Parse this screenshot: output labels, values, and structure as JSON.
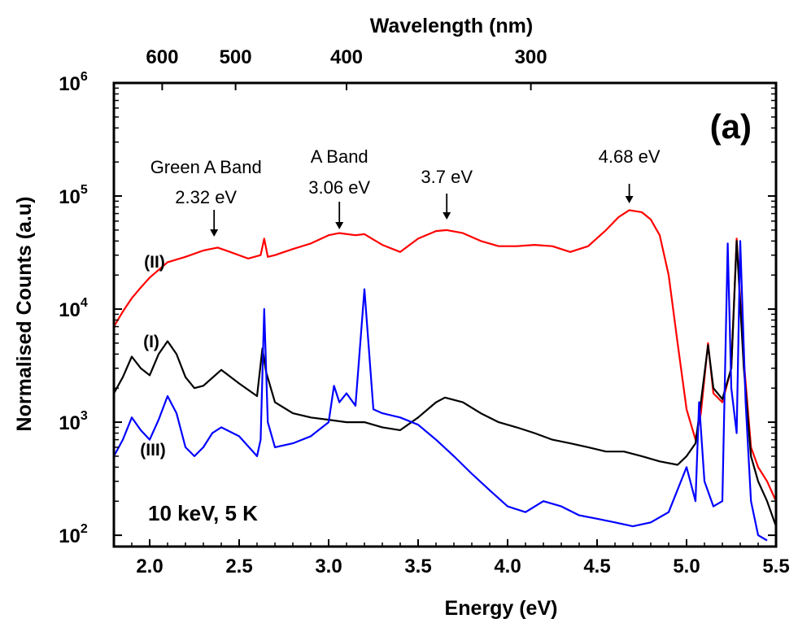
{
  "chart_data": {
    "type": "line",
    "title": "",
    "panel_label": "(a)",
    "condition_label": "10 keV, 5 K",
    "xlabel": "Energy (eV)",
    "x2label": "Wavelength (nm)",
    "ylabel": "Normalised Counts (a.u)",
    "xlim": [
      1.8,
      5.5
    ],
    "ylim_log10": [
      1.9,
      6
    ],
    "y_scale": "log",
    "x_ticks": [
      "2.0",
      "2.5",
      "3.0",
      "3.5",
      "4.0",
      "4.5",
      "5.0",
      "5.5"
    ],
    "x_tick_values": [
      2.0,
      2.5,
      3.0,
      3.5,
      4.0,
      4.5,
      5.0,
      5.5
    ],
    "y_ticks": [
      {
        "base": "10",
        "exp": "2",
        "log": 2
      },
      {
        "base": "10",
        "exp": "3",
        "log": 3
      },
      {
        "base": "10",
        "exp": "4",
        "log": 4
      },
      {
        "base": "10",
        "exp": "5",
        "log": 5
      },
      {
        "base": "10",
        "exp": "6",
        "log": 6
      }
    ],
    "top_ticks": [
      {
        "label": "600",
        "energy": 2.07
      },
      {
        "label": "500",
        "energy": 2.48
      },
      {
        "label": "400",
        "energy": 3.1
      },
      {
        "label": "300",
        "energy": 4.13
      }
    ],
    "series": [
      {
        "name": "(II)",
        "color": "#ff0000",
        "x": [
          1.8,
          1.85,
          1.9,
          1.95,
          2.0,
          2.1,
          2.2,
          2.3,
          2.38,
          2.45,
          2.55,
          2.62,
          2.64,
          2.66,
          2.7,
          2.8,
          2.9,
          3.0,
          3.06,
          3.15,
          3.2,
          3.3,
          3.4,
          3.5,
          3.6,
          3.66,
          3.75,
          3.85,
          3.95,
          4.05,
          4.15,
          4.25,
          4.35,
          4.45,
          4.55,
          4.62,
          4.68,
          4.75,
          4.8,
          4.85,
          4.9,
          4.95,
          5.0,
          5.05,
          5.08,
          5.12,
          5.15,
          5.2,
          5.25,
          5.28,
          5.32,
          5.36,
          5.4,
          5.45,
          5.5
        ],
        "y": [
          7000,
          9500,
          12500,
          15500,
          19000,
          26000,
          29000,
          33000,
          35000,
          32000,
          28000,
          30000,
          42000,
          29000,
          30000,
          34000,
          38000,
          45000,
          47000,
          45000,
          46000,
          37000,
          32000,
          42000,
          49000,
          50000,
          47000,
          40000,
          36000,
          36000,
          37000,
          36000,
          32000,
          36000,
          50000,
          65000,
          75000,
          72000,
          62000,
          45000,
          20000,
          5000,
          1300,
          700,
          1200,
          5000,
          1800,
          1500,
          3000,
          42000,
          3500,
          600,
          400,
          300,
          200
        ]
      },
      {
        "name": "(I)",
        "color": "#000000",
        "x": [
          1.8,
          1.85,
          1.9,
          1.95,
          2.0,
          2.05,
          2.1,
          2.15,
          2.2,
          2.25,
          2.3,
          2.4,
          2.5,
          2.6,
          2.63,
          2.65,
          2.7,
          2.8,
          2.9,
          3.0,
          3.1,
          3.2,
          3.3,
          3.4,
          3.5,
          3.6,
          3.65,
          3.75,
          3.85,
          3.95,
          4.05,
          4.15,
          4.25,
          4.35,
          4.45,
          4.55,
          4.65,
          4.75,
          4.85,
          4.95,
          5.0,
          5.05,
          5.08,
          5.12,
          5.15,
          5.2,
          5.25,
          5.28,
          5.32,
          5.36,
          5.4,
          5.45,
          5.5
        ],
        "y": [
          1800,
          2500,
          3800,
          3000,
          2600,
          4000,
          5200,
          4000,
          2500,
          2000,
          2100,
          2900,
          2200,
          1700,
          4500,
          2800,
          1500,
          1200,
          1100,
          1050,
          1000,
          1000,
          900,
          850,
          1100,
          1500,
          1650,
          1500,
          1200,
          1000,
          900,
          800,
          700,
          650,
          600,
          550,
          550,
          500,
          450,
          420,
          500,
          650,
          1500,
          4800,
          2000,
          1600,
          3000,
          40000,
          3000,
          500,
          300,
          200,
          120
        ]
      },
      {
        "name": "(III)",
        "color": "#0000ff",
        "x": [
          1.8,
          1.85,
          1.9,
          1.95,
          2.0,
          2.05,
          2.1,
          2.15,
          2.2,
          2.25,
          2.3,
          2.35,
          2.4,
          2.5,
          2.6,
          2.62,
          2.64,
          2.66,
          2.7,
          2.8,
          2.9,
          3.0,
          3.03,
          3.06,
          3.1,
          3.15,
          3.2,
          3.25,
          3.3,
          3.4,
          3.5,
          3.6,
          3.7,
          3.8,
          3.9,
          4.0,
          4.1,
          4.2,
          4.3,
          4.4,
          4.5,
          4.6,
          4.7,
          4.8,
          4.9,
          5.0,
          5.05,
          5.07,
          5.1,
          5.15,
          5.2,
          5.23,
          5.25,
          5.28,
          5.3,
          5.33,
          5.36,
          5.4,
          5.45
        ],
        "y": [
          500,
          700,
          1100,
          850,
          700,
          1050,
          1700,
          1200,
          600,
          500,
          600,
          800,
          900,
          750,
          500,
          700,
          10000,
          1000,
          600,
          650,
          750,
          1000,
          2100,
          1500,
          1800,
          1400,
          15000,
          1300,
          1200,
          1100,
          950,
          700,
          500,
          350,
          250,
          180,
          160,
          200,
          180,
          150,
          140,
          130,
          120,
          130,
          160,
          400,
          200,
          1500,
          300,
          180,
          200,
          38000,
          2000,
          800,
          40000,
          1500,
          200,
          100,
          90
        ]
      }
    ],
    "annotations": [
      {
        "lines": [
          "Green A Band",
          "2.32 eV"
        ],
        "energy": 2.36
      },
      {
        "lines": [
          "A Band",
          "3.06 eV"
        ],
        "energy": 3.06
      },
      {
        "lines": [
          "3.7 eV"
        ],
        "energy": 3.66
      },
      {
        "lines": [
          "4.68 eV"
        ],
        "energy": 4.68
      }
    ],
    "series_labels": [
      {
        "text": "(II)",
        "series": 0
      },
      {
        "text": "(I)",
        "series": 1
      },
      {
        "text": "(III)",
        "series": 2
      }
    ],
    "grid": false,
    "legend": "none"
  }
}
